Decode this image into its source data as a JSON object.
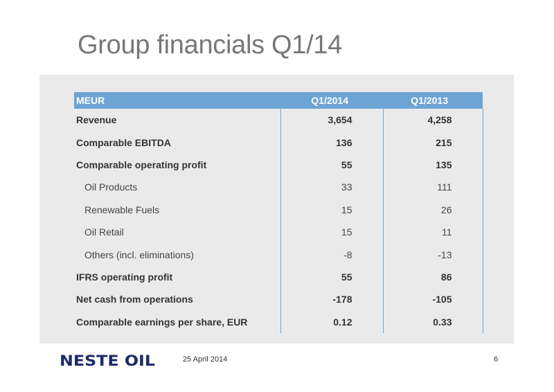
{
  "slide": {
    "title": "Group financials Q1/14",
    "date": "25 April 2014",
    "page_number": "6",
    "logo_text": "NESTE OIL"
  },
  "table": {
    "headers": [
      "MEUR",
      "Q1/2014",
      "Q1/2013"
    ],
    "rows": [
      {
        "label": "Revenue",
        "q1_2014": "3,654",
        "q1_2013": "4,258",
        "style": "bold"
      },
      {
        "label": "Comparable EBITDA",
        "q1_2014": "136",
        "q1_2013": "215",
        "style": "bold"
      },
      {
        "label": "Comparable operating profit",
        "q1_2014": "55",
        "q1_2013": "135",
        "style": "bold"
      },
      {
        "label": "Oil Products",
        "q1_2014": "33",
        "q1_2013": "111",
        "style": "sub"
      },
      {
        "label": "Renewable Fuels",
        "q1_2014": "15",
        "q1_2013": "26",
        "style": "sub"
      },
      {
        "label": "Oil Retail",
        "q1_2014": "15",
        "q1_2013": "11",
        "style": "sub"
      },
      {
        "label": "Others (incl. eliminations)",
        "q1_2014": "-8",
        "q1_2013": "-13",
        "style": "sub"
      },
      {
        "label": "IFRS operating profit",
        "q1_2014": "55",
        "q1_2013": "86",
        "style": "bold"
      },
      {
        "label": "Net cash from operations",
        "q1_2014": "-178",
        "q1_2013": "-105",
        "style": "bold"
      },
      {
        "label": "Comparable earnings per share, EUR",
        "q1_2014": "0.12",
        "q1_2013": "0.33",
        "style": "bold"
      }
    ]
  },
  "colors": {
    "header_blue": "#6ea4d4",
    "logo_navy": "#1c2a6b",
    "panel_gray": "#eaeaea"
  }
}
